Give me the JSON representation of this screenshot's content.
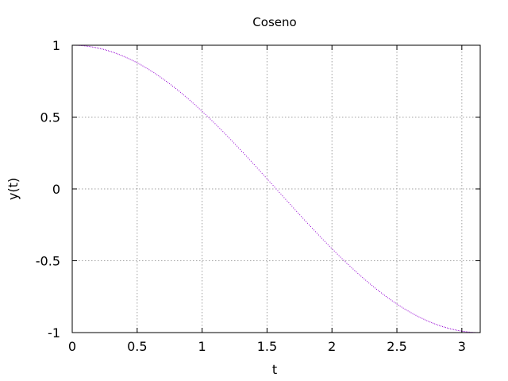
{
  "chart_data": {
    "type": "scatter",
    "title": "Coseno",
    "xlabel": "t",
    "ylabel": "y(t)",
    "xlim": [
      0,
      3.14159
    ],
    "ylim": [
      -1,
      1
    ],
    "xticks": [
      "0",
      "0.5",
      "1",
      "1.5",
      "2",
      "2.5",
      "3"
    ],
    "xtick_values": [
      0,
      0.5,
      1,
      1.5,
      2,
      2.5,
      3
    ],
    "yticks": [
      "1",
      "0.5",
      "0",
      "-0.5",
      "-1"
    ],
    "ytick_values": [
      1,
      0.5,
      0,
      -0.5,
      -1
    ],
    "grid": true,
    "legend": "none",
    "series": [
      {
        "color": "#9400d3",
        "function": "cos(t)",
        "t_range": [
          0,
          3.14159
        ]
      }
    ]
  }
}
